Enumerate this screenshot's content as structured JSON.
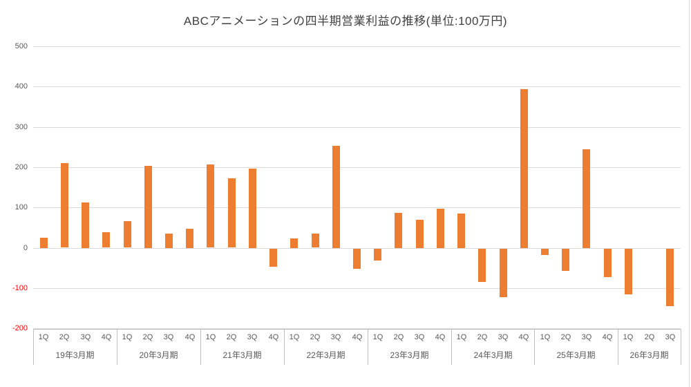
{
  "chart_data": {
    "type": "bar",
    "title": "ABCアニメーションの四半期営業利益の推移(単位:100万円)",
    "xlabel": "",
    "ylabel": "",
    "unit": "100万円",
    "ylim": [
      -200,
      500
    ],
    "yticks": [
      500,
      400,
      300,
      200,
      100,
      0,
      -100,
      -200
    ],
    "grid": true,
    "legend": false,
    "bar_color": "#ED7D31",
    "axis_label_color": "#595959",
    "negative_label_color": "#FF0000",
    "gridline_color": "#D9D9D9",
    "axis_line_color": "#BFBFBF",
    "groups": [
      {
        "label": "19年3月期",
        "quarters": [
          "1Q",
          "2Q",
          "3Q",
          "4Q"
        ],
        "values": [
          25,
          210,
          113,
          38
        ]
      },
      {
        "label": "20年3月期",
        "quarters": [
          "1Q",
          "2Q",
          "3Q",
          "4Q"
        ],
        "values": [
          66,
          204,
          36,
          48
        ]
      },
      {
        "label": "21年3月期",
        "quarters": [
          "1Q",
          "2Q",
          "3Q",
          "4Q"
        ],
        "values": [
          206,
          172,
          197,
          -45
        ]
      },
      {
        "label": "22年3月期",
        "quarters": [
          "1Q",
          "2Q",
          "3Q",
          "4Q"
        ],
        "values": [
          24,
          35,
          253,
          -49
        ]
      },
      {
        "label": "23年3月期",
        "quarters": [
          "1Q",
          "2Q",
          "3Q",
          "4Q"
        ],
        "values": [
          -30,
          87,
          70,
          97
        ]
      },
      {
        "label": "24年3月期",
        "quarters": [
          "1Q",
          "2Q",
          "3Q",
          "4Q"
        ],
        "values": [
          85,
          -82,
          -120,
          394
        ]
      },
      {
        "label": "25年3月期",
        "quarters": [
          "1Q",
          "2Q",
          "3Q",
          "4Q"
        ],
        "values": [
          -15,
          -55,
          245,
          -70
        ]
      },
      {
        "label": "26年3月期",
        "quarters": [
          "1Q",
          "2Q",
          "3Q"
        ],
        "values": [
          -113,
          0,
          -143
        ]
      }
    ]
  }
}
